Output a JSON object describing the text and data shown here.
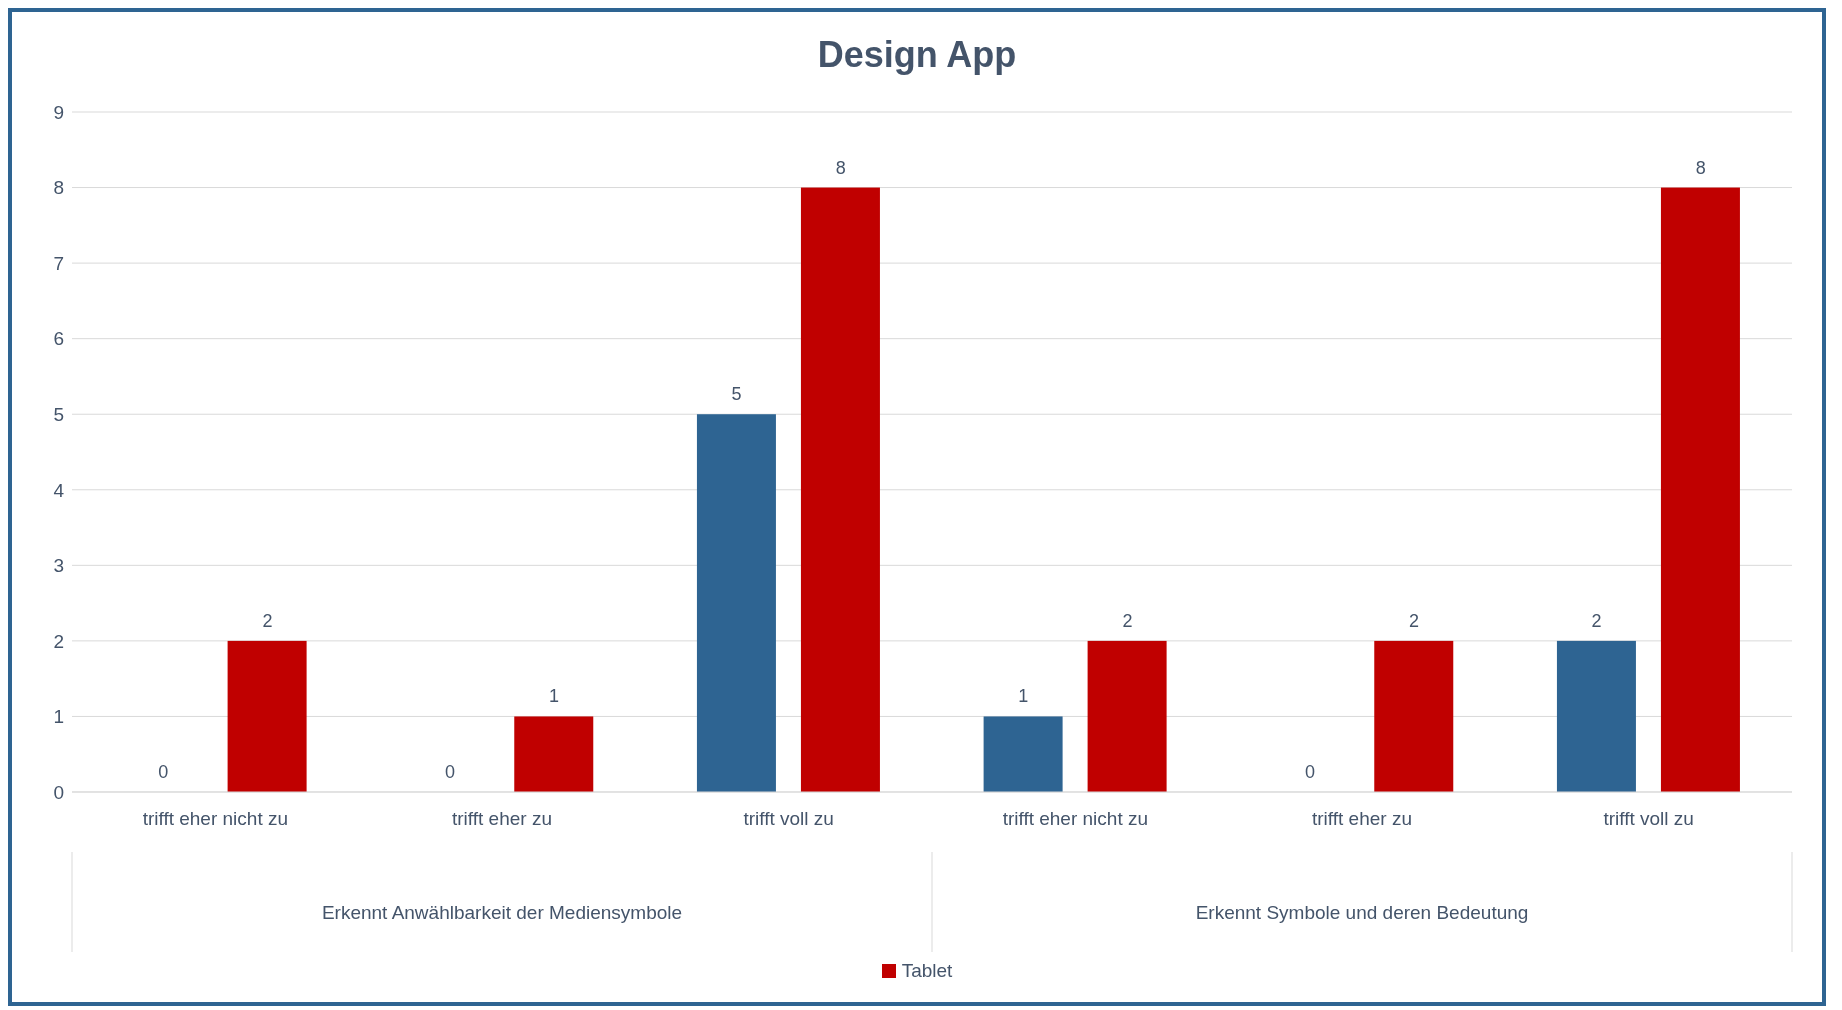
{
  "chart_data": {
    "type": "bar",
    "title": "Design App",
    "categories": [
      "trifft eher nicht zu",
      "trifft eher zu",
      "trifft voll zu",
      "trifft eher nicht zu",
      "trifft eher zu",
      "trifft voll zu"
    ],
    "series": [
      {
        "color": "#2e6492",
        "values": [
          0,
          0,
          5,
          1,
          0,
          2
        ]
      },
      {
        "name": "Tablet",
        "color": "#c00000",
        "values": [
          2,
          1,
          8,
          2,
          2,
          8
        ]
      }
    ],
    "annotations": [
      "Erkennt Anwählbarkeit der Mediensymbole",
      "Erkennt Symbole und deren Bedeutung"
    ],
    "ylim": [
      0,
      9
    ],
    "yticks": [
      0,
      1,
      2,
      3,
      4,
      5,
      6,
      7,
      8,
      9
    ],
    "grid": "y",
    "legend": "bottom",
    "data_labels": true
  }
}
